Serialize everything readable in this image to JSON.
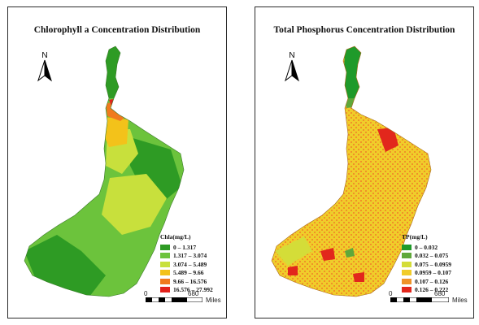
{
  "colors": {
    "frame": "#2b2b2b",
    "chla_classes": [
      "#2e9b24",
      "#6cc33c",
      "#c8e03c",
      "#f3c21a",
      "#f07a1e",
      "#e2221c"
    ],
    "tp_classes": [
      "#1f9a2a",
      "#5fa83a",
      "#d4dd38",
      "#f1cc2a",
      "#ef9328",
      "#e2271c"
    ]
  },
  "icons": {
    "north_arrow": "north-arrow-icon"
  },
  "left_map": {
    "title": "Chlorophyll a  Concentration Distribution",
    "north_label": "N",
    "legend": {
      "title": "Chla(mg/L)",
      "items": [
        "0 – 1.317",
        "1.317 – 3.074",
        "3.074 – 5.489",
        "5.489 – 9.66",
        "9.66 – 16.576",
        "16.576 – 27.992"
      ]
    },
    "scale": {
      "start": "0",
      "end": "680",
      "unit": "Miles"
    }
  },
  "right_map": {
    "title": "Total Phosphorus   Concentration Distribution",
    "north_label": "N",
    "legend": {
      "title": "TP(mg/L)",
      "items": [
        "0 – 0.032",
        "0.032 – 0.075",
        "0.075 – 0.0959",
        "0.0959 – 0.107",
        "0.107 – 0.126",
        "0.126 – 0.222"
      ]
    },
    "scale": {
      "start": "0",
      "end": "680",
      "unit": "Miles"
    }
  }
}
